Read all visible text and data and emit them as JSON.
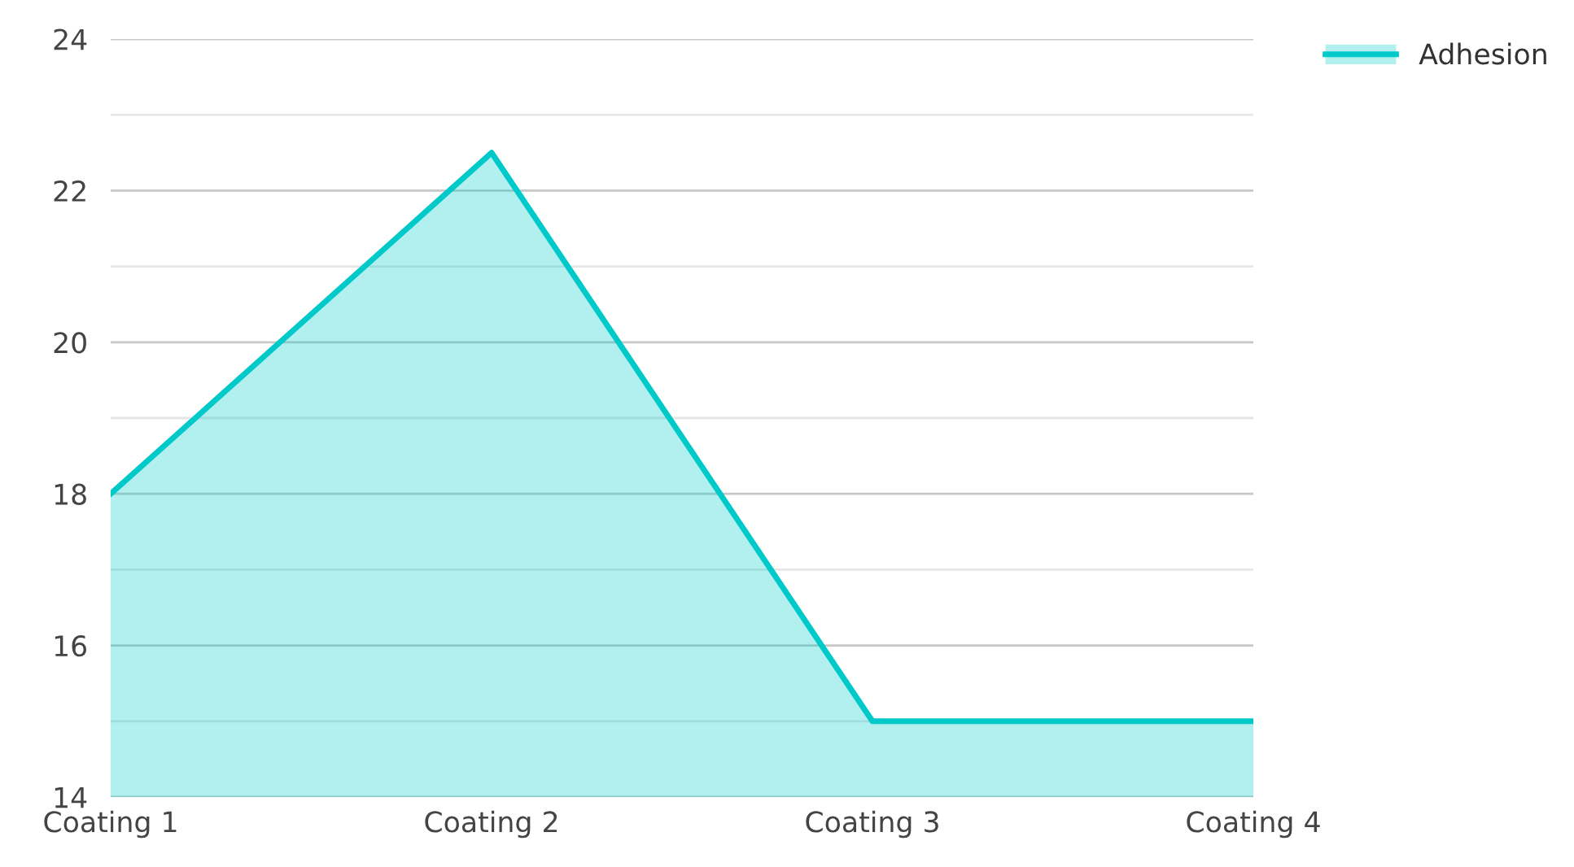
{
  "chart_data": {
    "type": "area",
    "categories": [
      "Coating 1",
      "Coating 2",
      "Coating 3",
      "Coating 4"
    ],
    "series": [
      {
        "name": "Adhesion",
        "color": "#00c9c9",
        "values": [
          18,
          22.5,
          15,
          15
        ]
      }
    ],
    "ylim": [
      14,
      24
    ],
    "yticks": [
      14,
      {
        "value": 15,
        "label": null
      },
      16,
      {
        "value": 17,
        "label": null
      },
      18,
      {
        "value": 19,
        "label": null
      },
      20,
      {
        "value": 21,
        "label": null
      },
      22,
      {
        "value": 23,
        "label": null
      },
      24
    ],
    "grid": "y",
    "legend": "top right"
  }
}
